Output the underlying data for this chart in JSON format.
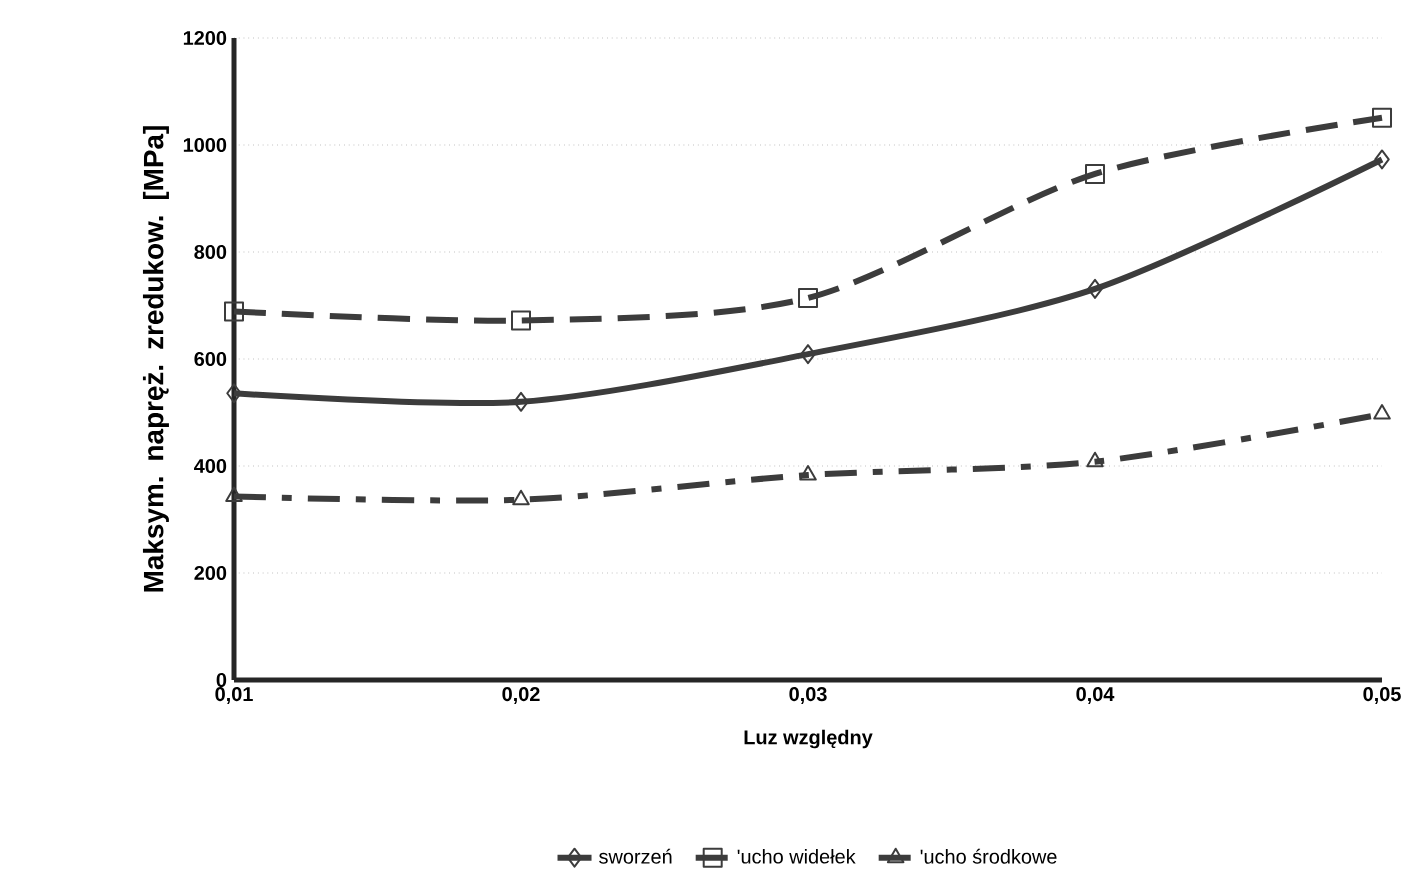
{
  "chart_data": {
    "type": "line",
    "xlabel": "Luz względny",
    "ylabel": "Maksym. napręż. zredukow. [MPa]",
    "x": [
      0.01,
      0.02,
      0.03,
      0.04,
      0.05
    ],
    "series": [
      {
        "name": "sworzeń",
        "color": "#3c3c3c",
        "marker": "diamond",
        "line_style": "solid",
        "values": [
          536,
          520,
          609,
          731,
          973
        ]
      },
      {
        "name": "'ucho widełek",
        "color": "#3c3c3c",
        "marker": "square",
        "line_style": "dashed",
        "values": [
          689,
          672,
          714,
          946,
          1051
        ]
      },
      {
        "name": "'ucho środkowe",
        "color": "#3c3c3c",
        "marker": "triangle",
        "line_style": "dashdotted",
        "values": [
          343,
          337,
          383,
          408,
          497
        ]
      }
    ],
    "xlim": [
      0.01,
      0.05
    ],
    "xticks": [
      {
        "value": 0.01,
        "label": "0,01"
      },
      {
        "value": 0.02,
        "label": "0,02"
      },
      {
        "value": 0.03,
        "label": "0,03"
      },
      {
        "value": 0.04,
        "label": "0,04"
      },
      {
        "value": 0.05,
        "label": "0,05"
      }
    ],
    "ylim": [
      0,
      1200
    ],
    "yticks": [
      0,
      200,
      400,
      600,
      800,
      1000,
      1200
    ],
    "grid": "y",
    "legend": "bottom"
  }
}
